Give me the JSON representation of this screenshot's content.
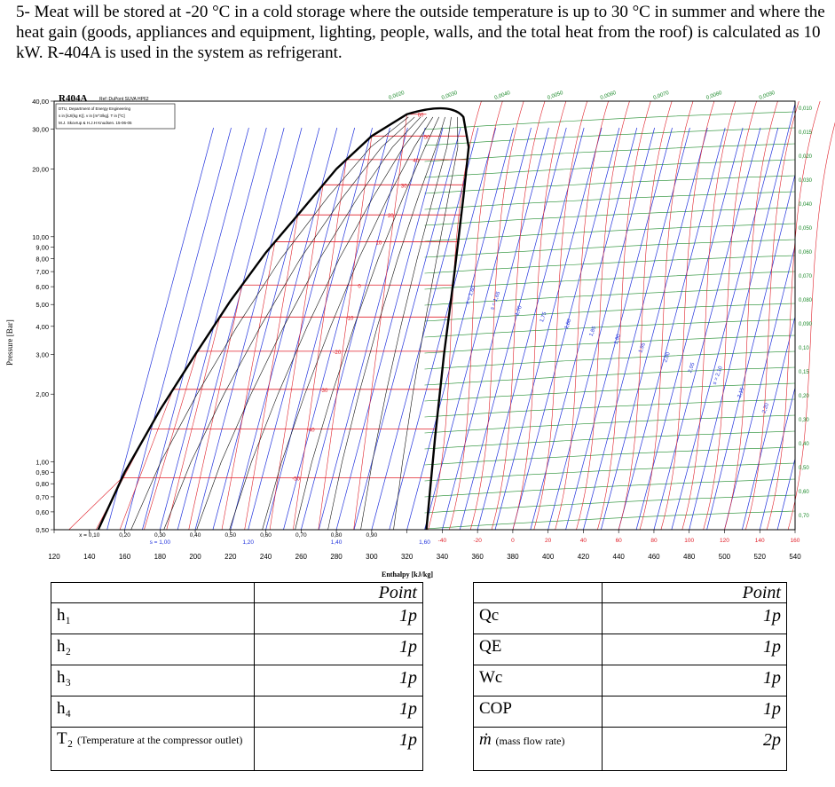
{
  "problem_text": "5- Meat will be stored at -20 °C in a cold storage where the outside temperature is up to 30 °C in summer and where the heat gain (goods, appliances and equipment, lighting, people, walls, and the total heat from the roof) is calculated as 10 kW. R-404A is used in the system as refrigerant.",
  "chart": {
    "title": "R404A",
    "ref": "Ref :DuPont SUVA HP62",
    "info": [
      "DTU, Department of Energy Engineering",
      "s in [kJ/(kg K)]. v in [m^3/kg]. T in [ºC]",
      "M.J. Skovrup & H.J.H Knudsen. 15-06-05"
    ],
    "ylabel": "Pressure [Bar]",
    "xlabel": "Enthalpy [kJ/kg]",
    "y_ticks": [
      "40,00",
      "30,00",
      "20,00",
      "10,00",
      "9,00",
      "8,00",
      "7,00",
      "6,00",
      "5,00",
      "4,00",
      "3,00",
      "2,00",
      "1,00",
      "0,90",
      "0,80",
      "0,70",
      "0,60",
      "0,50"
    ],
    "x_ticks": [
      "120",
      "140",
      "160",
      "180",
      "200",
      "220",
      "240",
      "260",
      "280",
      "300",
      "320",
      "340",
      "360",
      "380",
      "400",
      "420",
      "440",
      "460",
      "480",
      "500",
      "520",
      "540"
    ],
    "quality_labels": [
      "x = 0,10",
      "0,20",
      "0,30",
      "0,40",
      "0,50",
      "0,60",
      "0,70",
      "0,80",
      "0,90"
    ],
    "entropy_row_labels": [
      "s = 1,00",
      "1,20",
      "1,40",
      "1,60"
    ],
    "vapor_temp_labels": [
      "-40",
      "-20",
      "0",
      "20",
      "40",
      "60",
      "80",
      "100",
      "120",
      "140",
      "160"
    ],
    "dome_temp_labels": [
      "60",
      "50",
      "40",
      "30",
      "20",
      "10",
      "0",
      "-10",
      "-20",
      "-30",
      "-40",
      "-50"
    ],
    "specific_volume_labels": [
      "0,0020",
      "0,0030",
      "0,0040",
      "0,0050",
      "0,0060",
      "0,0070",
      "0,0080",
      "0,0090",
      "0,010",
      "0,015",
      "0,020",
      "0,030",
      "0,040",
      "0,050",
      "0,060",
      "0,070",
      "0,080",
      "0,090",
      "0,10",
      "0,15",
      "0,20",
      "0,30",
      "0,40",
      "0,50",
      "0,60",
      "0,70"
    ],
    "entropy_line_labels": [
      "s = 1,60",
      "s = 1,65",
      "1,70",
      "1,75",
      "1,80",
      "1,85",
      "1,90",
      "1,95",
      "2,00",
      "2,05",
      "s = 2,10",
      "2,15",
      "2,20"
    ]
  },
  "table": {
    "header": "Point",
    "rows": [
      {
        "left": "h₁",
        "left_pts": "1p",
        "right": "Qc",
        "right_pts": "1p"
      },
      {
        "left": "h₂",
        "left_pts": "1p",
        "right": "QE",
        "right_pts": "1p"
      },
      {
        "left": "h₃",
        "left_pts": "1p",
        "right": "Wc",
        "right_pts": "1p"
      },
      {
        "left": "h₄",
        "left_pts": "1p",
        "right": "COP",
        "right_pts": "1p"
      }
    ],
    "last_left_main": "T₂",
    "last_left_note": "(Temperature at the compressor outlet)",
    "last_left_pts": "1p",
    "last_right_main": "ṁ",
    "last_right_note": "(mass flow rate)",
    "last_right_pts": "2p"
  },
  "colors": {
    "isotherm": "#e0202a",
    "isentrope": "#2233dd",
    "isochore": "#1c8a2a",
    "dome": "#000000"
  }
}
